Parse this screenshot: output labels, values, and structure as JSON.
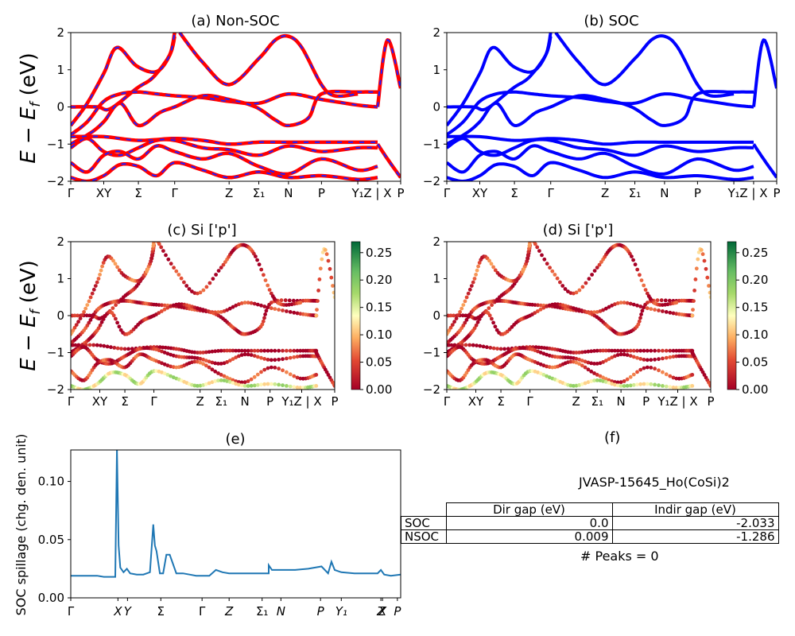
{
  "figure": {
    "panel_titles": {
      "a": "(a) Non-SOC",
      "b": "(b) SOC",
      "c": "(c)  Si ['p']",
      "d": "(d) Si ['p']",
      "e": "(e)",
      "f": "(f)"
    },
    "energy_ylabel": "E − E_f (eV)",
    "spillage_ylabel": "SOC spillage (chg. den. unit)",
    "material_id": "JVASP-15645_Ho(CoSi)2",
    "peaks_text": "# Peaks = 0",
    "gap_table": {
      "headers": [
        "",
        "Dir gap (eV)",
        "Indir gap (eV)"
      ],
      "rows": [
        {
          "label": "SOC",
          "dir": "0.0",
          "indir": "-2.033"
        },
        {
          "label": "NSOC",
          "dir": "0.009",
          "indir": "-1.286"
        }
      ]
    },
    "colors": {
      "nonsoc_line": "#ff0000",
      "nonsoc_dash": "#1f1fff",
      "soc_line": "#0000ff",
      "spillage_line": "#1f77b4",
      "cmap_low": "#a50026",
      "cmap_mid": "#ffffbf",
      "cmap_high": "#006837"
    }
  },
  "chart_data": [
    {
      "type": "line",
      "panel": "a",
      "title": "(a) Non-SOC",
      "ylabel": "E − E_f (eV)",
      "ylim": [
        -2,
        2
      ],
      "yticks": [
        "−2",
        "−1",
        "0",
        "1",
        "2"
      ],
      "xtick_labels": [
        "Γ",
        "XY",
        "Σ",
        "Γ",
        "Z",
        "Σ₁",
        "N",
        "P",
        "Y₁",
        "Z | X",
        "P"
      ],
      "xtick_pos": [
        0,
        0.1,
        0.205,
        0.315,
        0.48,
        0.57,
        0.66,
        0.76,
        0.87,
        0.93,
        1.0
      ],
      "bands": [
        {
          "x": [
            0,
            0.08,
            0.12,
            0.2,
            0.25,
            0.3,
            0.315
          ],
          "y": [
            0.0,
            0.0,
            -0.05,
            0.5,
            0.8,
            1.4,
            1.9
          ]
        },
        {
          "x": [
            0,
            0.05,
            0.1,
            0.14,
            0.2,
            0.26,
            0.3,
            0.315
          ],
          "y": [
            -0.5,
            0.1,
            0.9,
            1.6,
            1.1,
            0.95,
            1.4,
            2.0
          ]
        },
        {
          "x": [
            0,
            0.05,
            0.1,
            0.15,
            0.205,
            0.26,
            0.315,
            0.4,
            0.48,
            0.57,
            0.66,
            0.76,
            0.87,
            0.93
          ],
          "y": [
            -0.75,
            -0.4,
            0.15,
            0.35,
            0.4,
            0.35,
            0.3,
            0.25,
            0.15,
            0.1,
            0.35,
            0.2,
            0.05,
            0.0
          ]
        },
        {
          "x": [
            0,
            0.06,
            0.1,
            0.15,
            0.205,
            0.27,
            0.315,
            0.4,
            0.48,
            0.56,
            0.62,
            0.66,
            0.72,
            0.76,
            0.87,
            0.93
          ],
          "y": [
            -1.0,
            -0.7,
            -0.4,
            0.1,
            -0.5,
            -0.15,
            0.0,
            0.3,
            0.2,
            0.0,
            -0.35,
            -0.5,
            -0.3,
            0.35,
            0.4,
            0.4
          ]
        },
        {
          "x": [
            0,
            0.1,
            0.205,
            0.315,
            0.4,
            0.48,
            0.57,
            0.66,
            0.76,
            0.87,
            0.93
          ],
          "y": [
            -0.8,
            -0.8,
            -0.9,
            -0.85,
            -0.9,
            -1.0,
            -0.95,
            -0.95,
            -0.95,
            -0.95,
            -0.95
          ]
        },
        {
          "x": [
            0,
            0.05,
            0.1,
            0.15,
            0.205,
            0.26,
            0.315,
            0.4,
            0.48,
            0.57,
            0.66,
            0.76,
            0.87,
            0.93
          ],
          "y": [
            -1.1,
            -0.85,
            -1.2,
            -1.3,
            -1.1,
            -0.9,
            -0.9,
            -1.1,
            -1.15,
            -1.3,
            -1.05,
            -1.2,
            -1.1,
            -1.1
          ]
        },
        {
          "x": [
            0,
            0.05,
            0.1,
            0.15,
            0.205,
            0.26,
            0.315,
            0.4,
            0.48,
            0.57,
            0.66,
            0.76,
            0.87,
            0.93
          ],
          "y": [
            -1.5,
            -1.75,
            -1.3,
            -1.2,
            -1.4,
            -1.05,
            -1.2,
            -1.4,
            -1.25,
            -1.6,
            -1.8,
            -1.4,
            -1.7,
            -1.6
          ]
        },
        {
          "x": [
            0,
            0.05,
            0.1,
            0.15,
            0.205,
            0.26,
            0.315,
            0.4,
            0.48,
            0.57,
            0.66,
            0.76,
            0.87,
            0.93
          ],
          "y": [
            -1.9,
            -2.0,
            -1.85,
            -1.55,
            -1.6,
            -1.85,
            -1.5,
            -1.7,
            -1.9,
            -1.75,
            -1.9,
            -1.85,
            -1.95,
            -1.9
          ]
        },
        {
          "x": [
            0.33,
            0.4,
            0.48,
            0.57,
            0.62,
            0.66,
            0.7,
            0.76,
            0.8,
            0.87
          ],
          "y": [
            2.0,
            1.2,
            0.6,
            1.3,
            1.8,
            1.9,
            1.6,
            0.6,
            0.3,
            0.35
          ]
        },
        {
          "x": [
            0.93,
            0.96,
            1.0
          ],
          "y": [
            0.0,
            1.8,
            0.5
          ]
        },
        {
          "x": [
            0.93,
            0.96,
            1.0
          ],
          "y": [
            -1.0,
            -1.4,
            -1.9
          ]
        }
      ]
    },
    {
      "type": "line",
      "panel": "b",
      "title": "(b) SOC",
      "ylim": [
        -2,
        2
      ],
      "yticks": [
        "−2",
        "−1",
        "0",
        "1",
        "2"
      ],
      "xtick_labels": [
        "Γ",
        "XY",
        "Σ",
        "Γ",
        "Z",
        "Σ₁",
        "N",
        "P",
        "Y₁",
        "Z | X",
        "P"
      ],
      "xtick_pos": [
        0,
        0.1,
        0.205,
        0.315,
        0.48,
        0.57,
        0.66,
        0.76,
        0.87,
        0.93,
        1.0
      ],
      "bands": [
        {
          "x": [
            0,
            0.08,
            0.12,
            0.2,
            0.25,
            0.3,
            0.315
          ],
          "y": [
            0.0,
            0.0,
            -0.05,
            0.5,
            0.8,
            1.4,
            1.9
          ]
        },
        {
          "x": [
            0,
            0.05,
            0.1,
            0.14,
            0.2,
            0.26,
            0.3,
            0.315
          ],
          "y": [
            -0.5,
            0.1,
            0.9,
            1.6,
            1.1,
            0.95,
            1.4,
            2.0
          ]
        },
        {
          "x": [
            0,
            0.05,
            0.1,
            0.15,
            0.205,
            0.26,
            0.315,
            0.4,
            0.48,
            0.57,
            0.66,
            0.76,
            0.87,
            0.93
          ],
          "y": [
            -0.75,
            -0.4,
            0.15,
            0.35,
            0.4,
            0.35,
            0.3,
            0.25,
            0.15,
            0.1,
            0.35,
            0.2,
            0.05,
            0.0
          ]
        },
        {
          "x": [
            0,
            0.06,
            0.1,
            0.15,
            0.205,
            0.27,
            0.315,
            0.4,
            0.48,
            0.56,
            0.62,
            0.66,
            0.72,
            0.76,
            0.87,
            0.93
          ],
          "y": [
            -1.0,
            -0.7,
            -0.4,
            0.1,
            -0.5,
            -0.15,
            0.0,
            0.3,
            0.2,
            0.0,
            -0.35,
            -0.5,
            -0.3,
            0.35,
            0.4,
            0.4
          ]
        },
        {
          "x": [
            0,
            0.1,
            0.205,
            0.315,
            0.4,
            0.48,
            0.57,
            0.66,
            0.76,
            0.87,
            0.93
          ],
          "y": [
            -0.8,
            -0.8,
            -0.9,
            -0.85,
            -0.9,
            -1.0,
            -0.95,
            -0.95,
            -0.95,
            -0.95,
            -0.95
          ]
        },
        {
          "x": [
            0,
            0.05,
            0.1,
            0.15,
            0.205,
            0.26,
            0.315,
            0.4,
            0.48,
            0.57,
            0.66,
            0.76,
            0.87,
            0.93
          ],
          "y": [
            -1.1,
            -0.85,
            -1.2,
            -1.3,
            -1.1,
            -0.9,
            -0.9,
            -1.1,
            -1.15,
            -1.3,
            -1.05,
            -1.2,
            -1.1,
            -1.1
          ]
        },
        {
          "x": [
            0,
            0.05,
            0.1,
            0.15,
            0.205,
            0.26,
            0.315,
            0.4,
            0.48,
            0.57,
            0.66,
            0.76,
            0.87,
            0.93
          ],
          "y": [
            -1.5,
            -1.75,
            -1.3,
            -1.2,
            -1.4,
            -1.05,
            -1.2,
            -1.4,
            -1.25,
            -1.6,
            -1.8,
            -1.4,
            -1.7,
            -1.6
          ]
        },
        {
          "x": [
            0,
            0.05,
            0.1,
            0.15,
            0.205,
            0.26,
            0.315,
            0.4,
            0.48,
            0.57,
            0.66,
            0.76,
            0.87,
            0.93
          ],
          "y": [
            -1.9,
            -2.0,
            -1.85,
            -1.55,
            -1.6,
            -1.85,
            -1.5,
            -1.7,
            -1.9,
            -1.75,
            -1.9,
            -1.85,
            -1.95,
            -1.9
          ]
        },
        {
          "x": [
            0.33,
            0.4,
            0.48,
            0.57,
            0.62,
            0.66,
            0.7,
            0.76,
            0.8,
            0.87
          ],
          "y": [
            2.0,
            1.2,
            0.6,
            1.3,
            1.8,
            1.9,
            1.6,
            0.6,
            0.3,
            0.35
          ]
        },
        {
          "x": [
            0.93,
            0.96,
            1.0
          ],
          "y": [
            0.0,
            1.8,
            0.5
          ]
        },
        {
          "x": [
            0.93,
            0.96,
            1.0
          ],
          "y": [
            -1.0,
            -1.4,
            -1.9
          ]
        }
      ]
    },
    {
      "type": "scatter",
      "panel": "c",
      "title": "(c)  Si ['p']",
      "ylabel": "E − E_f (eV)",
      "ylim": [
        -2,
        2
      ],
      "yticks": [
        "−2",
        "−1",
        "0",
        "1",
        "2"
      ],
      "xtick_labels": [
        "Γ",
        "XY",
        "Σ",
        "Γ",
        "Z",
        "Σ₁",
        "N",
        "P",
        "Y₁Z | X",
        "P"
      ],
      "xtick_pos": [
        0,
        0.11,
        0.205,
        0.315,
        0.49,
        0.57,
        0.66,
        0.755,
        0.875,
        1.0
      ],
      "colorbar": {
        "ticks": [
          "0.00",
          "0.05",
          "0.10",
          "0.15",
          "0.20",
          "0.25"
        ],
        "range": [
          0,
          0.27
        ]
      },
      "bands_ref": "same bands as panel a",
      "weights": [
        0.01,
        0.05,
        0.03,
        0.02,
        0.0,
        0.02,
        0.04,
        0.15,
        0.03,
        0.08,
        0.02
      ]
    },
    {
      "type": "scatter",
      "panel": "d",
      "title": "(d) Si ['p']",
      "ylim": [
        -2,
        2
      ],
      "yticks": [
        "−2",
        "−1",
        "0",
        "1",
        "2"
      ],
      "xtick_labels": [
        "Γ",
        "XY",
        "Σ",
        "Γ",
        "Z",
        "Σ₁",
        "N",
        "P",
        "Y₁Z | X",
        "P"
      ],
      "xtick_pos": [
        0,
        0.11,
        0.205,
        0.315,
        0.49,
        0.57,
        0.66,
        0.755,
        0.875,
        1.0
      ],
      "colorbar": {
        "ticks": [
          "0.00",
          "0.05",
          "0.10",
          "0.15",
          "0.20",
          "0.25"
        ],
        "range": [
          0,
          0.27
        ]
      },
      "bands_ref": "same bands as panel b",
      "weights": [
        0.01,
        0.05,
        0.03,
        0.02,
        0.0,
        0.02,
        0.04,
        0.15,
        0.03,
        0.08,
        0.02
      ]
    },
    {
      "type": "line",
      "panel": "e",
      "title": "(e)",
      "ylabel": "SOC spillage (chg. den. unit)",
      "ylim": [
        0,
        0.127
      ],
      "yticks": [
        "0.00",
        "0.05",
        "0.10"
      ],
      "ytick_vals": [
        0,
        0.05,
        0.1
      ],
      "xtick_labels": [
        "Γ",
        "X",
        "Y",
        "Σ",
        "Γ",
        "Z",
        "Σ₁",
        "N",
        "P",
        "Y₁",
        "Z",
        "X",
        "P"
      ],
      "xtick_pos": [
        0,
        0.143,
        0.172,
        0.273,
        0.398,
        0.48,
        0.58,
        0.637,
        0.757,
        0.82,
        0.94,
        0.945,
        0.99
      ],
      "x": [
        0,
        0.05,
        0.08,
        0.1,
        0.12,
        0.135,
        0.14,
        0.145,
        0.15,
        0.16,
        0.17,
        0.18,
        0.2,
        0.22,
        0.24,
        0.25,
        0.255,
        0.26,
        0.27,
        0.28,
        0.29,
        0.3,
        0.32,
        0.34,
        0.36,
        0.38,
        0.4,
        0.42,
        0.44,
        0.46,
        0.48,
        0.52,
        0.56,
        0.6,
        0.6,
        0.61,
        0.64,
        0.68,
        0.72,
        0.76,
        0.78,
        0.79,
        0.8,
        0.82,
        0.86,
        0.9,
        0.93,
        0.94,
        0.95,
        0.97,
        1.0
      ],
      "y": [
        0.019,
        0.019,
        0.019,
        0.018,
        0.018,
        0.018,
        0.128,
        0.045,
        0.026,
        0.022,
        0.025,
        0.021,
        0.02,
        0.02,
        0.022,
        0.063,
        0.045,
        0.04,
        0.021,
        0.021,
        0.037,
        0.037,
        0.021,
        0.021,
        0.02,
        0.019,
        0.019,
        0.019,
        0.024,
        0.022,
        0.021,
        0.021,
        0.021,
        0.021,
        0.028,
        0.024,
        0.024,
        0.024,
        0.025,
        0.027,
        0.021,
        0.031,
        0.024,
        0.022,
        0.021,
        0.021,
        0.021,
        0.024,
        0.02,
        0.019,
        0.02
      ]
    }
  ]
}
